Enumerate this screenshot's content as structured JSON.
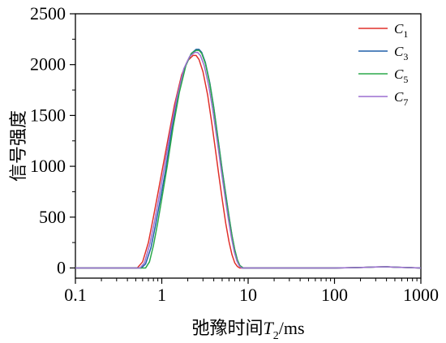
{
  "chart_data": {
    "type": "line",
    "xscale": "log",
    "xlabel_main": "弛豫时间",
    "xlabel_var": "T",
    "xlabel_sub": "2",
    "xlabel_unit": "/ms",
    "ylabel": "信号强度",
    "xlim": [
      0.1,
      1000
    ],
    "ylim": [
      -100,
      2500
    ],
    "xticks": [
      0.1,
      1,
      10,
      100,
      1000
    ],
    "xtick_labels": [
      "0.1",
      "1",
      "10",
      "100",
      "1000"
    ],
    "yticks": [
      0,
      500,
      1000,
      1500,
      2000,
      2500
    ],
    "ytick_labels": [
      "0",
      "500",
      "1000",
      "1500",
      "2000",
      "2500"
    ],
    "legend_position": "top-right",
    "series": [
      {
        "name": "C",
        "sub": "1",
        "color": "#e0302a",
        "x": [
          0.1,
          0.4,
          0.52,
          0.6,
          0.7,
          0.8,
          0.9,
          1.0,
          1.2,
          1.4,
          1.7,
          2.0,
          2.3,
          2.5,
          2.7,
          3.0,
          3.4,
          3.8,
          4.2,
          4.6,
          5.0,
          5.5,
          6.0,
          6.5,
          7.0,
          7.5,
          8.0,
          10,
          100,
          200,
          300,
          400,
          500,
          1000
        ],
        "y": [
          0,
          0,
          0,
          60,
          250,
          500,
          730,
          940,
          1300,
          1600,
          1900,
          2040,
          2090,
          2090,
          2050,
          1930,
          1700,
          1420,
          1150,
          900,
          680,
          440,
          260,
          130,
          50,
          15,
          0,
          0,
          0,
          5,
          10,
          12,
          8,
          0
        ]
      },
      {
        "name": "C",
        "sub": "3",
        "color": "#1f5fa8",
        "x": [
          0.1,
          0.4,
          0.58,
          0.65,
          0.75,
          0.85,
          0.95,
          1.1,
          1.3,
          1.6,
          1.9,
          2.2,
          2.5,
          2.7,
          2.9,
          3.2,
          3.6,
          4.0,
          4.5,
          5.0,
          5.5,
          6.0,
          6.5,
          7.0,
          7.5,
          8.0,
          8.6,
          10,
          100,
          200,
          300,
          400,
          500,
          1000
        ],
        "y": [
          0,
          0,
          0,
          40,
          200,
          430,
          650,
          950,
          1350,
          1750,
          2000,
          2110,
          2150,
          2150,
          2120,
          2020,
          1820,
          1580,
          1260,
          970,
          730,
          510,
          320,
          180,
          80,
          25,
          0,
          0,
          0,
          5,
          10,
          12,
          8,
          0
        ]
      },
      {
        "name": "C",
        "sub": "5",
        "color": "#2aa84a",
        "x": [
          0.1,
          0.45,
          0.65,
          0.72,
          0.8,
          0.9,
          1.0,
          1.15,
          1.35,
          1.6,
          1.9,
          2.2,
          2.5,
          2.7,
          2.9,
          3.2,
          3.6,
          4.0,
          4.5,
          5.0,
          5.5,
          6.0,
          6.5,
          7.0,
          7.5,
          8.0,
          8.8,
          10,
          100,
          200,
          300,
          400,
          500,
          1000
        ],
        "y": [
          0,
          0,
          0,
          60,
          220,
          450,
          680,
          990,
          1380,
          1730,
          1990,
          2110,
          2140,
          2140,
          2110,
          2010,
          1810,
          1570,
          1250,
          960,
          720,
          500,
          320,
          180,
          80,
          25,
          0,
          0,
          0,
          5,
          10,
          12,
          8,
          0
        ]
      },
      {
        "name": "C",
        "sub": "7",
        "color": "#9b6fd0",
        "x": [
          0.1,
          0.4,
          0.56,
          0.63,
          0.73,
          0.83,
          0.93,
          1.05,
          1.25,
          1.5,
          1.8,
          2.1,
          2.4,
          2.6,
          2.8,
          3.1,
          3.5,
          3.9,
          4.4,
          4.9,
          5.4,
          5.9,
          6.4,
          6.9,
          7.4,
          7.9,
          8.4,
          10,
          100,
          200,
          300,
          400,
          500,
          1000
        ],
        "y": [
          0,
          0,
          0,
          50,
          240,
          470,
          700,
          950,
          1330,
          1680,
          1960,
          2080,
          2120,
          2120,
          2090,
          1990,
          1790,
          1550,
          1240,
          950,
          700,
          480,
          300,
          160,
          70,
          20,
          0,
          0,
          0,
          5,
          10,
          12,
          8,
          0
        ]
      }
    ]
  }
}
